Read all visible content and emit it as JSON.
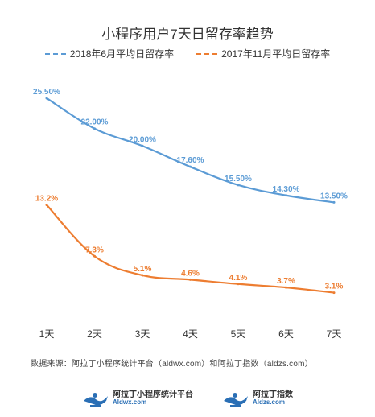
{
  "chart_data": {
    "type": "line",
    "title": "小程序用户7天日留存率趋势",
    "categories": [
      "1天",
      "2天",
      "3天",
      "4天",
      "5天",
      "6天",
      "7天"
    ],
    "series": [
      {
        "name": "2018年6月平均日留存率",
        "color": "#5B9BD5",
        "values": [
          25.5,
          22.0,
          20.0,
          17.6,
          15.5,
          14.3,
          13.5
        ],
        "labels": [
          "25.50%",
          "22.00%",
          "20.00%",
          "17.60%",
          "15.50%",
          "14.30%",
          "13.50%"
        ]
      },
      {
        "name": "2017年11月平均日留存率",
        "color": "#ED7D31",
        "values": [
          13.2,
          7.3,
          5.1,
          4.6,
          4.1,
          3.7,
          3.1
        ],
        "labels": [
          "13.2%",
          "7.3%",
          "5.1%",
          "4.6%",
          "4.1%",
          "3.7%",
          "3.1%"
        ]
      }
    ],
    "ylim": [
      0,
      28
    ],
    "grid": false,
    "legend_position": "top"
  },
  "source_text": "数据来源：阿拉丁小程序统计平台（aldwx.com）和阿拉丁指数（aldzs.com）",
  "footer": {
    "logo1": {
      "name": "阿拉丁小程序统计平台",
      "domain": "Aldwx.com",
      "icon": "genie-lamp-icon"
    },
    "logo2": {
      "name": "阿拉丁指数",
      "domain": "Aldzs.com",
      "icon": "genie-lamp-icon"
    }
  }
}
